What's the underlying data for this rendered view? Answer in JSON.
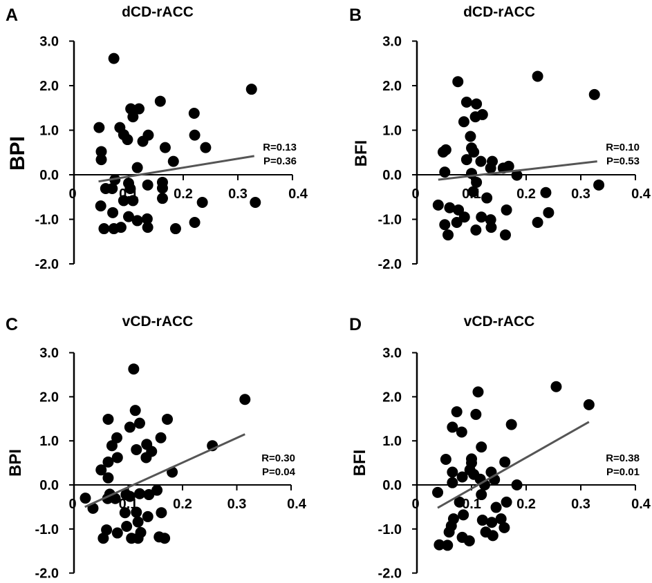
{
  "chart_data": [
    {
      "type": "scatter",
      "panel_letter": "A",
      "title": "dCD-rACC",
      "xlabel": "",
      "ylabel": "BPI",
      "xlim": [
        0,
        0.4
      ],
      "ylim": [
        -2.0,
        3.0
      ],
      "xticks": [
        "0",
        "0.1",
        "0.2",
        "0.3",
        "0.4"
      ],
      "yticks": [
        "3.0",
        "2.0",
        "1.0",
        "0.0",
        "-1.0",
        "-2.0"
      ],
      "stat_r": "R=0.13",
      "stat_p": "P=0.36",
      "trendline": [
        [
          0.045,
          -0.15
        ],
        [
          0.33,
          0.42
        ]
      ],
      "points": [
        [
          0.073,
          2.61
        ],
        [
          0.325,
          1.92
        ],
        [
          0.158,
          1.65
        ],
        [
          0.104,
          1.48
        ],
        [
          0.119,
          1.48
        ],
        [
          0.108,
          1.3
        ],
        [
          0.22,
          1.38
        ],
        [
          0.046,
          1.06
        ],
        [
          0.084,
          1.06
        ],
        [
          0.091,
          0.9
        ],
        [
          0.098,
          0.79
        ],
        [
          0.136,
          0.89
        ],
        [
          0.126,
          0.75
        ],
        [
          0.221,
          0.89
        ],
        [
          0.167,
          0.61
        ],
        [
          0.241,
          0.61
        ],
        [
          0.05,
          0.52
        ],
        [
          0.05,
          0.34
        ],
        [
          0.182,
          0.3
        ],
        [
          0.116,
          0.16
        ],
        [
          0.075,
          -0.11
        ],
        [
          0.058,
          -0.31
        ],
        [
          0.07,
          -0.31
        ],
        [
          0.1,
          -0.19
        ],
        [
          0.103,
          -0.31
        ],
        [
          0.135,
          -0.23
        ],
        [
          0.162,
          -0.17
        ],
        [
          0.162,
          -0.3
        ],
        [
          0.162,
          -0.53
        ],
        [
          0.091,
          -0.58
        ],
        [
          0.108,
          -0.58
        ],
        [
          0.235,
          -0.62
        ],
        [
          0.332,
          -0.62
        ],
        [
          0.049,
          -0.7
        ],
        [
          0.071,
          -0.85
        ],
        [
          0.1,
          -0.94
        ],
        [
          0.116,
          -1.03
        ],
        [
          0.134,
          -0.99
        ],
        [
          0.135,
          -1.18
        ],
        [
          0.221,
          -1.07
        ],
        [
          0.055,
          -1.21
        ],
        [
          0.073,
          -1.21
        ],
        [
          0.086,
          -1.18
        ],
        [
          0.186,
          -1.21
        ]
      ]
    },
    {
      "type": "scatter",
      "panel_letter": "B",
      "title": "dCD-rACC",
      "xlabel": "",
      "ylabel": "BFI",
      "xlim": [
        0,
        0.4
      ],
      "ylim": [
        -2.0,
        3.0
      ],
      "xticks": [
        "0",
        "0.1",
        "0.2",
        "0.3",
        "0.4"
      ],
      "yticks": [
        "3.0",
        "2.0",
        "1.0",
        "0.0",
        "-1.0",
        "-2.0"
      ],
      "stat_r": "R=0.10",
      "stat_p": "P=0.53",
      "trendline": [
        [
          0.039,
          -0.11
        ],
        [
          0.33,
          0.3
        ]
      ],
      "points": [
        [
          0.221,
          2.21
        ],
        [
          0.325,
          1.8
        ],
        [
          0.075,
          2.09
        ],
        [
          0.091,
          1.63
        ],
        [
          0.109,
          1.59
        ],
        [
          0.12,
          1.35
        ],
        [
          0.107,
          1.3
        ],
        [
          0.086,
          1.19
        ],
        [
          0.098,
          0.86
        ],
        [
          0.053,
          0.56
        ],
        [
          0.048,
          0.51
        ],
        [
          0.1,
          0.6
        ],
        [
          0.104,
          0.51
        ],
        [
          0.091,
          0.34
        ],
        [
          0.117,
          0.3
        ],
        [
          0.138,
          0.3
        ],
        [
          0.135,
          0.15
        ],
        [
          0.158,
          0.15
        ],
        [
          0.168,
          0.19
        ],
        [
          0.051,
          0.06
        ],
        [
          0.1,
          0.03
        ],
        [
          0.183,
          -0.01
        ],
        [
          0.109,
          -0.17
        ],
        [
          0.103,
          -0.38
        ],
        [
          0.333,
          -0.23
        ],
        [
          0.236,
          -0.4
        ],
        [
          0.128,
          -0.52
        ],
        [
          0.039,
          -0.68
        ],
        [
          0.06,
          -0.74
        ],
        [
          0.076,
          -0.79
        ],
        [
          0.087,
          -0.95
        ],
        [
          0.164,
          -0.79
        ],
        [
          0.073,
          -1.07
        ],
        [
          0.051,
          -1.12
        ],
        [
          0.118,
          -0.95
        ],
        [
          0.135,
          -1.01
        ],
        [
          0.136,
          -1.18
        ],
        [
          0.241,
          -0.85
        ],
        [
          0.221,
          -1.07
        ],
        [
          0.108,
          -1.24
        ],
        [
          0.057,
          -1.35
        ],
        [
          0.162,
          -1.35
        ]
      ]
    },
    {
      "type": "scatter",
      "panel_letter": "C",
      "title": "vCD-rACC",
      "xlabel": "",
      "ylabel": "BPI",
      "xlim": [
        0,
        0.4
      ],
      "ylim": [
        -2.0,
        3.0
      ],
      "xticks": [
        "0",
        "0.1",
        "0.2",
        "0.3",
        "0.4"
      ],
      "yticks": [
        "3.0",
        "2.0",
        "1.0",
        "0.0",
        "-1.0",
        "-2.0"
      ],
      "stat_r": "R=0.30",
      "stat_p": "P=0.04",
      "trendline": [
        [
          0.02,
          -0.5
        ],
        [
          0.315,
          1.15
        ]
      ],
      "points": [
        [
          0.11,
          2.63
        ],
        [
          0.315,
          1.94
        ],
        [
          0.113,
          1.69
        ],
        [
          0.063,
          1.49
        ],
        [
          0.172,
          1.49
        ],
        [
          0.121,
          1.4
        ],
        [
          0.103,
          1.31
        ],
        [
          0.079,
          1.07
        ],
        [
          0.16,
          1.07
        ],
        [
          0.07,
          0.89
        ],
        [
          0.134,
          0.92
        ],
        [
          0.143,
          0.76
        ],
        [
          0.115,
          0.8
        ],
        [
          0.255,
          0.89
        ],
        [
          0.08,
          0.62
        ],
        [
          0.063,
          0.52
        ],
        [
          0.133,
          0.62
        ],
        [
          0.05,
          0.34
        ],
        [
          0.063,
          0.16
        ],
        [
          0.181,
          0.29
        ],
        [
          0.021,
          -0.3
        ],
        [
          0.035,
          -0.53
        ],
        [
          0.066,
          -0.21
        ],
        [
          0.062,
          -0.31
        ],
        [
          0.076,
          -0.31
        ],
        [
          0.096,
          -0.22
        ],
        [
          0.103,
          -0.26
        ],
        [
          0.121,
          -0.2
        ],
        [
          0.138,
          -0.22
        ],
        [
          0.153,
          -0.12
        ],
        [
          0.094,
          -0.63
        ],
        [
          0.115,
          -0.62
        ],
        [
          0.118,
          -0.84
        ],
        [
          0.136,
          -0.72
        ],
        [
          0.161,
          -0.63
        ],
        [
          0.06,
          -1.02
        ],
        [
          0.08,
          -1.09
        ],
        [
          0.097,
          -0.94
        ],
        [
          0.054,
          -1.21
        ],
        [
          0.123,
          -1.08
        ],
        [
          0.106,
          -1.21
        ],
        [
          0.118,
          -1.21
        ],
        [
          0.157,
          -1.18
        ],
        [
          0.167,
          -1.21
        ]
      ]
    },
    {
      "type": "scatter",
      "panel_letter": "D",
      "title": "vCD-rACC",
      "xlabel": "",
      "ylabel": "BFI",
      "xlim": [
        0,
        0.4
      ],
      "ylim": [
        -2.0,
        3.0
      ],
      "xticks": [
        "0",
        "0.1",
        "0.2",
        "0.3",
        "0.4"
      ],
      "yticks": [
        "3.0",
        "2.0",
        "1.0",
        "0.0",
        "-1.0",
        "-2.0"
      ],
      "stat_r": "R=0.38",
      "stat_p": "P=0.01",
      "trendline": [
        [
          0.038,
          -0.52
        ],
        [
          0.315,
          1.43
        ]
      ],
      "points": [
        [
          0.255,
          2.23
        ],
        [
          0.315,
          1.82
        ],
        [
          0.112,
          2.11
        ],
        [
          0.073,
          1.66
        ],
        [
          0.108,
          1.6
        ],
        [
          0.065,
          1.31
        ],
        [
          0.082,
          1.2
        ],
        [
          0.173,
          1.37
        ],
        [
          0.118,
          0.86
        ],
        [
          0.053,
          0.58
        ],
        [
          0.1,
          0.59
        ],
        [
          0.1,
          0.5
        ],
        [
          0.161,
          0.52
        ],
        [
          0.065,
          0.29
        ],
        [
          0.083,
          0.18
        ],
        [
          0.097,
          0.34
        ],
        [
          0.104,
          0.24
        ],
        [
          0.116,
          0.13
        ],
        [
          0.136,
          0.29
        ],
        [
          0.142,
          0.12
        ],
        [
          0.065,
          0.05
        ],
        [
          0.124,
          0.0
        ],
        [
          0.183,
          0.0
        ],
        [
          0.038,
          -0.17
        ],
        [
          0.118,
          -0.22
        ],
        [
          0.078,
          -0.39
        ],
        [
          0.145,
          -0.51
        ],
        [
          0.164,
          -0.39
        ],
        [
          0.085,
          -0.68
        ],
        [
          0.067,
          -0.77
        ],
        [
          0.063,
          -0.93
        ],
        [
          0.059,
          -1.07
        ],
        [
          0.12,
          -0.8
        ],
        [
          0.137,
          -0.85
        ],
        [
          0.154,
          -0.77
        ],
        [
          0.16,
          -0.97
        ],
        [
          0.126,
          -1.07
        ],
        [
          0.139,
          -1.15
        ],
        [
          0.083,
          -1.19
        ],
        [
          0.096,
          -1.27
        ],
        [
          0.041,
          -1.36
        ],
        [
          0.056,
          -1.37
        ]
      ]
    }
  ]
}
